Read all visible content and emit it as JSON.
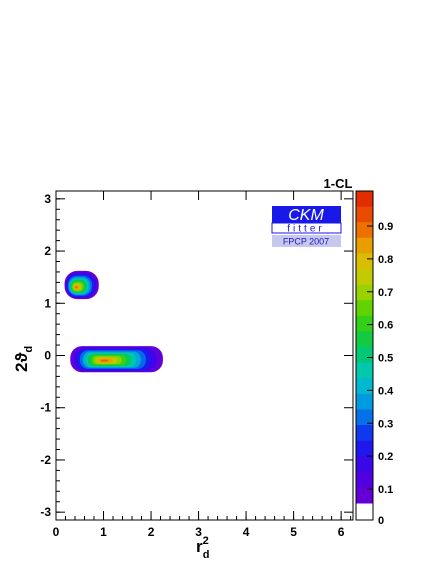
{
  "chart_data": {
    "type": "heatmap",
    "title": "",
    "xlabel": "r",
    "xlabel_sup": "2",
    "xlabel_sub": "d",
    "ylabel": "2ϑ",
    "ylabel_sub": "d",
    "xlim": [
      0,
      6.25
    ],
    "ylim": [
      -3.15,
      3.15
    ],
    "x_ticks": [
      "0",
      "1",
      "2",
      "3",
      "4",
      "5",
      "6"
    ],
    "y_ticks": [
      "-3",
      "-2",
      "-1",
      "0",
      "1",
      "2",
      "3"
    ],
    "colorbar": {
      "title": "1-CL",
      "range": [
        0,
        1
      ],
      "tick_labels": [
        "0",
        "0.1",
        "0.2",
        "0.3",
        "0.4",
        "0.5",
        "0.6",
        "0.7",
        "0.8",
        "0.9"
      ]
    },
    "regions": [
      {
        "x_range": [
          0.18,
          0.9
        ],
        "y_range": [
          1.08,
          1.62
        ],
        "peak": [
          0.42,
          1.3
        ],
        "max_cl": 0.97
      },
      {
        "x_range": [
          0.3,
          2.25
        ],
        "y_range": [
          -0.32,
          0.18
        ],
        "peak": [
          1.0,
          -0.1
        ],
        "max_cl": 0.98
      }
    ],
    "logo": {
      "main": "CKM",
      "sub": "fitter",
      "caption": "FPCP 2007"
    }
  }
}
